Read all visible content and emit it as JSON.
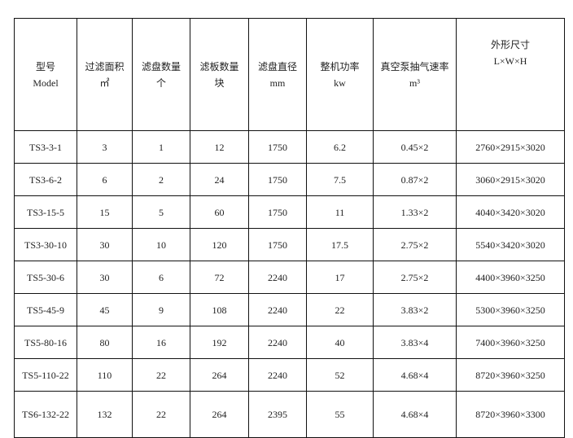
{
  "headers": [
    {
      "zh": "型号",
      "unit": "Model"
    },
    {
      "zh": "过滤面积",
      "unit": "㎡"
    },
    {
      "zh": "滤盘数量",
      "unit": "个"
    },
    {
      "zh": "滤板数量",
      "unit": "块"
    },
    {
      "zh": "滤盘直径",
      "unit": "mm"
    },
    {
      "zh": "整机功率",
      "unit": "kw"
    },
    {
      "zh": "真空泵抽气速率",
      "unit": "m³"
    },
    {
      "zh": "外形尺寸",
      "unit": "L×W×H"
    }
  ],
  "rows": [
    [
      "TS3-3-1",
      "3",
      "1",
      "12",
      "1750",
      "6.2",
      "0.45×2",
      "2760×2915×3020"
    ],
    [
      "TS3-6-2",
      "6",
      "2",
      "24",
      "1750",
      "7.5",
      "0.87×2",
      "3060×2915×3020"
    ],
    [
      "TS3-15-5",
      "15",
      "5",
      "60",
      "1750",
      "11",
      "1.33×2",
      "4040×3420×3020"
    ],
    [
      "TS3-30-10",
      "30",
      "10",
      "120",
      "1750",
      "17.5",
      "2.75×2",
      "5540×3420×3020"
    ],
    [
      "TS5-30-6",
      "30",
      "6",
      "72",
      "2240",
      "17",
      "2.75×2",
      "4400×3960×3250"
    ],
    [
      "TS5-45-9",
      "45",
      "9",
      "108",
      "2240",
      "22",
      "3.83×2",
      "5300×3960×3250"
    ],
    [
      "TS5-80-16",
      "80",
      "16",
      "192",
      "2240",
      "40",
      "3.83×4",
      "7400×3960×3250"
    ],
    [
      "TS5-110-22",
      "110",
      "22",
      "264",
      "2240",
      "52",
      "4.68×4",
      "8720×3960×3250"
    ],
    [
      "TS6-132-22",
      "132",
      "22",
      "264",
      "2395",
      "55",
      "4.68×4",
      "8720×3960×3300"
    ]
  ]
}
